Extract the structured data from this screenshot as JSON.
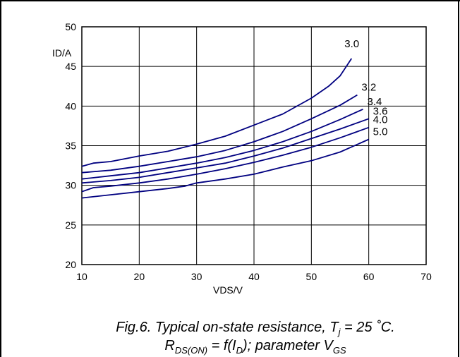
{
  "chart_data": {
    "type": "line",
    "title": "",
    "xlabel": "VDS/V",
    "ylabel": "ID/A",
    "xlim": [
      10,
      70
    ],
    "ylim": [
      20,
      50
    ],
    "xticks": [
      10,
      20,
      30,
      40,
      50,
      60,
      70
    ],
    "yticks": [
      20,
      25,
      30,
      35,
      40,
      45,
      50
    ],
    "grid": true,
    "series": [
      {
        "name": "3.0",
        "x": [
          10,
          12,
          15,
          20,
          25,
          30,
          35,
          40,
          45,
          50,
          53,
          55,
          57
        ],
        "y": [
          32.4,
          32.8,
          33.0,
          33.7,
          34.3,
          35.2,
          36.2,
          37.6,
          39.0,
          41.0,
          42.5,
          43.8,
          46.0
        ]
      },
      {
        "name": "3.2",
        "x": [
          10,
          15,
          20,
          25,
          30,
          35,
          40,
          45,
          50,
          55,
          58
        ],
        "y": [
          31.6,
          31.9,
          32.4,
          33.0,
          33.6,
          34.4,
          35.5,
          36.8,
          38.4,
          40.1,
          41.4
        ]
      },
      {
        "name": "3.4",
        "x": [
          10,
          15,
          20,
          25,
          30,
          35,
          40,
          45,
          50,
          55,
          59
        ],
        "y": [
          30.8,
          31.2,
          31.6,
          32.2,
          32.8,
          33.5,
          34.4,
          35.5,
          36.8,
          38.3,
          39.6
        ]
      },
      {
        "name": "3.6",
        "x": [
          10,
          15,
          20,
          25,
          30,
          35,
          40,
          45,
          50,
          55,
          60
        ],
        "y": [
          30.3,
          30.6,
          31.0,
          31.6,
          32.2,
          32.8,
          33.7,
          34.7,
          35.9,
          37.1,
          38.4
        ]
      },
      {
        "name": "4.0",
        "x": [
          10,
          12,
          15,
          20,
          25,
          30,
          35,
          40,
          45,
          50,
          55,
          60
        ],
        "y": [
          29.2,
          29.7,
          29.9,
          30.3,
          30.8,
          31.4,
          32.1,
          32.9,
          33.8,
          34.8,
          36.0,
          37.3
        ]
      },
      {
        "name": "5.0",
        "x": [
          10,
          15,
          20,
          25,
          28,
          30,
          35,
          40,
          45,
          50,
          55,
          60
        ],
        "y": [
          28.4,
          28.8,
          29.2,
          29.6,
          29.9,
          30.3,
          30.8,
          31.4,
          32.3,
          33.1,
          34.2,
          35.8
        ]
      }
    ],
    "series_color": "#000080"
  },
  "caption": {
    "line1_prefix": "Fig.6.   Typical on-state resistance, T",
    "line1_sub": "j",
    "line1_suffix": " = 25 ˚C.",
    "line2_r": "R",
    "line2_r_sub": "DS(ON)",
    "line2_mid": " = f(I",
    "line2_id_sub": "D",
    "line2_tail": "); parameter V",
    "line2_vgs_sub": "GS"
  }
}
